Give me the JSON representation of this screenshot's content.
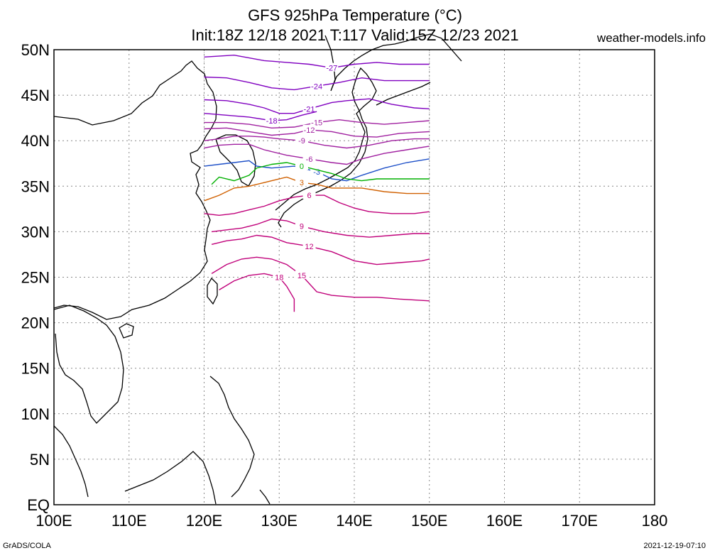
{
  "header": {
    "title": "GFS 925hPa Temperature (°C)",
    "subtitle": "Init:18Z 12/18 2021 T:117 Valid:15Z 12/23 2021",
    "site": "weather-models.info"
  },
  "footer": {
    "left": "GrADS/COLA",
    "right": "2021-12-19-07:10"
  },
  "axes": {
    "lon_labels": [
      "100E",
      "110E",
      "120E",
      "130E",
      "140E",
      "150E",
      "160E",
      "170E",
      "180"
    ],
    "lat_labels": [
      "EQ",
      "5N",
      "10N",
      "15N",
      "20N",
      "25N",
      "30N",
      "35N",
      "40N",
      "45N",
      "50N"
    ]
  },
  "colors": {
    "cold": "#8000c0",
    "cool": "#a020a0",
    "blue": "#1e50c8",
    "zero": "#00b000",
    "orange": "#d06000",
    "warm": "#c0007a",
    "coast": "#000000",
    "grid": "#888888"
  },
  "chart_data": {
    "type": "contour-map",
    "title": "GFS 925hPa Temperature (°C)",
    "subtitle": "Init:18Z 12/18 2021 T:117 Valid:15Z 12/23 2021",
    "lon_range": [
      100,
      180
    ],
    "lat_range": [
      0,
      50
    ],
    "data_domain": {
      "lon": [
        120,
        150
      ],
      "lat": [
        20,
        50
      ]
    },
    "grid": true,
    "contours": [
      {
        "level": -27,
        "label": "-27",
        "color": "#8000c0",
        "points": [
          [
            120,
            49.2
          ],
          [
            124,
            49.4
          ],
          [
            128,
            48.8
          ],
          [
            131,
            48.6
          ],
          [
            134,
            48.4
          ],
          [
            137,
            48.0
          ],
          [
            140,
            48.4
          ],
          [
            143,
            48.6
          ],
          [
            146,
            48.4
          ],
          [
            150,
            48.4
          ]
        ]
      },
      {
        "level": -24,
        "label": "-24",
        "color": "#8000c0",
        "points": [
          [
            120,
            47.0
          ],
          [
            123,
            46.9
          ],
          [
            126,
            46.4
          ],
          [
            129,
            45.8
          ],
          [
            132,
            45.6
          ],
          [
            135,
            46.0
          ],
          [
            138,
            46.4
          ],
          [
            141,
            46.9
          ],
          [
            144,
            46.6
          ],
          [
            147,
            46.6
          ],
          [
            150,
            46.6
          ]
        ]
      },
      {
        "level": -21,
        "label": "-21",
        "color": "#8000c0",
        "points": [
          [
            120,
            44.5
          ],
          [
            123,
            44.4
          ],
          [
            126,
            44.0
          ],
          [
            128,
            43.6
          ],
          [
            130,
            43.0
          ],
          [
            132,
            43.0
          ],
          [
            134,
            43.5
          ],
          [
            137,
            44.2
          ],
          [
            139,
            44.4
          ],
          [
            142,
            44.6
          ],
          [
            145,
            44.0
          ],
          [
            148,
            43.6
          ],
          [
            150,
            43.5
          ]
        ]
      },
      {
        "level": -18,
        "label": "-18",
        "color": "#8000c0",
        "points": [
          [
            120,
            43.0
          ],
          [
            123,
            42.8
          ],
          [
            126,
            42.6
          ],
          [
            129,
            42.2
          ],
          [
            131,
            42.3
          ],
          [
            133,
            42.8
          ],
          [
            135,
            43.2
          ]
        ]
      },
      {
        "level": -15,
        "label": "-15",
        "color": "#a020a0",
        "points": [
          [
            120,
            42.0
          ],
          [
            123,
            42.0
          ],
          [
            126,
            41.8
          ],
          [
            129,
            41.4
          ],
          [
            132,
            41.5
          ],
          [
            135,
            42.0
          ],
          [
            138,
            42.3
          ],
          [
            141,
            42.0
          ],
          [
            144,
            41.8
          ],
          [
            147,
            42.0
          ],
          [
            150,
            42.2
          ]
        ]
      },
      {
        "level": -12,
        "label": "-12",
        "color": "#a020a0",
        "points": [
          [
            120,
            41.3
          ],
          [
            123,
            41.4
          ],
          [
            126,
            41.0
          ],
          [
            129,
            40.6
          ],
          [
            132,
            40.8
          ],
          [
            134,
            41.2
          ],
          [
            137,
            41.0
          ],
          [
            140,
            40.5
          ],
          [
            143,
            40.4
          ],
          [
            146,
            40.8
          ],
          [
            150,
            41.0
          ]
        ]
      },
      {
        "level": -9,
        "label": "-9",
        "color": "#a020a0",
        "points": [
          [
            120,
            40.0
          ],
          [
            122,
            40.2
          ],
          [
            124,
            40.5
          ],
          [
            126,
            40.5
          ],
          [
            128,
            40.4
          ],
          [
            130,
            40.2
          ],
          [
            133,
            40.0
          ],
          [
            136,
            39.5
          ],
          [
            139,
            39.2
          ],
          [
            142,
            39.5
          ],
          [
            145,
            40.0
          ],
          [
            148,
            40.2
          ],
          [
            150,
            40.2
          ]
        ]
      },
      {
        "level": -6,
        "label": "-6",
        "color": "#a020a0",
        "points": [
          [
            120,
            39.2
          ],
          [
            122,
            39.5
          ],
          [
            124,
            39.6
          ],
          [
            126,
            39.6
          ],
          [
            128,
            39.0
          ],
          [
            131,
            38.4
          ],
          [
            134,
            38.0
          ],
          [
            137,
            37.6
          ],
          [
            139,
            37.4
          ],
          [
            141,
            38.0
          ],
          [
            144,
            38.6
          ],
          [
            147,
            39.0
          ],
          [
            150,
            39.4
          ]
        ]
      },
      {
        "level": -3,
        "label": "-3",
        "color": "#1e50c8",
        "points": [
          [
            120,
            37.2
          ],
          [
            122,
            37.4
          ],
          [
            124,
            37.6
          ],
          [
            126,
            37.8
          ],
          [
            127,
            37.2
          ],
          [
            129,
            37.0
          ],
          [
            132,
            37.2
          ],
          [
            135,
            36.6
          ],
          [
            137,
            35.8
          ],
          [
            139,
            35.6
          ],
          [
            141,
            36.2
          ],
          [
            144,
            37.0
          ],
          [
            147,
            37.6
          ],
          [
            150,
            38.0
          ]
        ]
      },
      {
        "level": 0,
        "label": "0",
        "color": "#00b000",
        "points": [
          [
            121,
            35.2
          ],
          [
            122,
            36.0
          ],
          [
            124,
            35.6
          ],
          [
            126,
            36.2
          ],
          [
            127,
            37.0
          ],
          [
            129,
            37.4
          ],
          [
            131,
            37.6
          ],
          [
            133,
            37.2
          ],
          [
            135,
            36.8
          ],
          [
            137,
            36.4
          ],
          [
            139,
            35.8
          ],
          [
            141,
            35.6
          ],
          [
            143,
            35.8
          ],
          [
            146,
            35.8
          ],
          [
            150,
            35.8
          ]
        ]
      },
      {
        "level": 3,
        "label": "3",
        "color": "#d06000",
        "points": [
          [
            120,
            33.4
          ],
          [
            122,
            34.0
          ],
          [
            124,
            34.8
          ],
          [
            126,
            35.0
          ],
          [
            128,
            35.4
          ],
          [
            129,
            35.6
          ],
          [
            131,
            36.0
          ],
          [
            133,
            35.4
          ],
          [
            135,
            35.2
          ],
          [
            137,
            34.8
          ],
          [
            139,
            34.8
          ],
          [
            141,
            34.8
          ],
          [
            144,
            34.4
          ],
          [
            147,
            34.2
          ],
          [
            150,
            34.2
          ]
        ]
      },
      {
        "level": 6,
        "label": "6",
        "color": "#c0007a",
        "points": [
          [
            120,
            32.0
          ],
          [
            122,
            31.8
          ],
          [
            124,
            32.0
          ],
          [
            126,
            32.4
          ],
          [
            128,
            32.8
          ],
          [
            130,
            33.4
          ],
          [
            132,
            33.8
          ],
          [
            134,
            34.0
          ],
          [
            136,
            34.0
          ],
          [
            138,
            33.2
          ],
          [
            140,
            32.6
          ],
          [
            142,
            32.2
          ],
          [
            145,
            32.0
          ],
          [
            148,
            32.0
          ],
          [
            150,
            32.2
          ]
        ]
      },
      {
        "level": 9,
        "label": "9",
        "color": "#c0007a",
        "points": [
          [
            121,
            30.0
          ],
          [
            123,
            30.2
          ],
          [
            125,
            30.4
          ],
          [
            127,
            30.8
          ],
          [
            129,
            31.4
          ],
          [
            131,
            31.2
          ],
          [
            133,
            30.6
          ],
          [
            136,
            30.0
          ],
          [
            139,
            29.6
          ],
          [
            142,
            29.4
          ],
          [
            145,
            29.6
          ],
          [
            148,
            29.8
          ],
          [
            150,
            29.8
          ]
        ]
      },
      {
        "level": 12,
        "label": "12",
        "color": "#c0007a",
        "points": [
          [
            121,
            28.6
          ],
          [
            123,
            29.0
          ],
          [
            125,
            29.2
          ],
          [
            127,
            29.6
          ],
          [
            129,
            29.4
          ],
          [
            131,
            28.8
          ],
          [
            134,
            28.4
          ],
          [
            137,
            27.8
          ],
          [
            140,
            26.8
          ],
          [
            143,
            26.4
          ],
          [
            146,
            26.6
          ],
          [
            149,
            26.8
          ],
          [
            150,
            27.0
          ]
        ]
      },
      {
        "level": 15,
        "label": "15",
        "color": "#c0007a",
        "points": [
          [
            121,
            25.4
          ],
          [
            123,
            26.4
          ],
          [
            125,
            27.0
          ],
          [
            127,
            27.2
          ],
          [
            129,
            27.0
          ],
          [
            131,
            26.4
          ],
          [
            133,
            25.2
          ],
          [
            135,
            23.4
          ],
          [
            137,
            23.0
          ],
          [
            140,
            22.8
          ],
          [
            143,
            22.8
          ],
          [
            146,
            22.6
          ],
          [
            150,
            22.4
          ]
        ]
      },
      {
        "level": 18,
        "label": "18",
        "color": "#c0007a",
        "points": [
          [
            122,
            23.6
          ],
          [
            124,
            24.6
          ],
          [
            126,
            25.2
          ],
          [
            128,
            25.4
          ],
          [
            130,
            25.0
          ],
          [
            131,
            24.0
          ],
          [
            132,
            22.6
          ],
          [
            132,
            21.2
          ]
        ]
      }
    ]
  }
}
